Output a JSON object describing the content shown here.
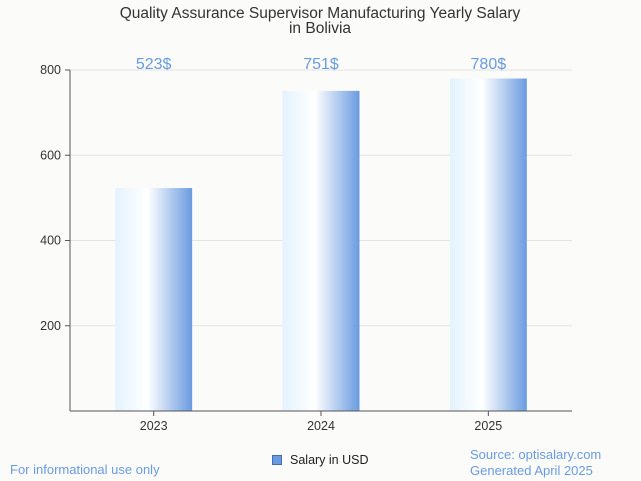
{
  "chart_data": {
    "type": "bar",
    "title": [
      "Quality Assurance Supervisor Manufacturing Yearly Salary",
      "in Bolivia"
    ],
    "categories": [
      "2023",
      "2024",
      "2025"
    ],
    "values": [
      523,
      751,
      780
    ],
    "value_labels": [
      "523$",
      "751$",
      "780$"
    ],
    "series": [
      {
        "name": "Salary in USD",
        "values": [
          523,
          751,
          780
        ]
      }
    ],
    "ylim": [
      0,
      800
    ],
    "yticks": [
      200,
      400,
      600,
      800
    ],
    "xlabel": "",
    "ylabel": "",
    "grid": true,
    "legend_position": "bottom-center"
  },
  "colors": {
    "bar_light": "#e4f3ff",
    "bar_mid": "#ffffff",
    "bar_dark": "#6a9be0",
    "value_label": "#6a9be0",
    "footer_text": "#6a9be0"
  },
  "footer": {
    "left_note": "For informational use only",
    "source": "Source: optisalary.com",
    "generated": "Generated April 2025"
  }
}
